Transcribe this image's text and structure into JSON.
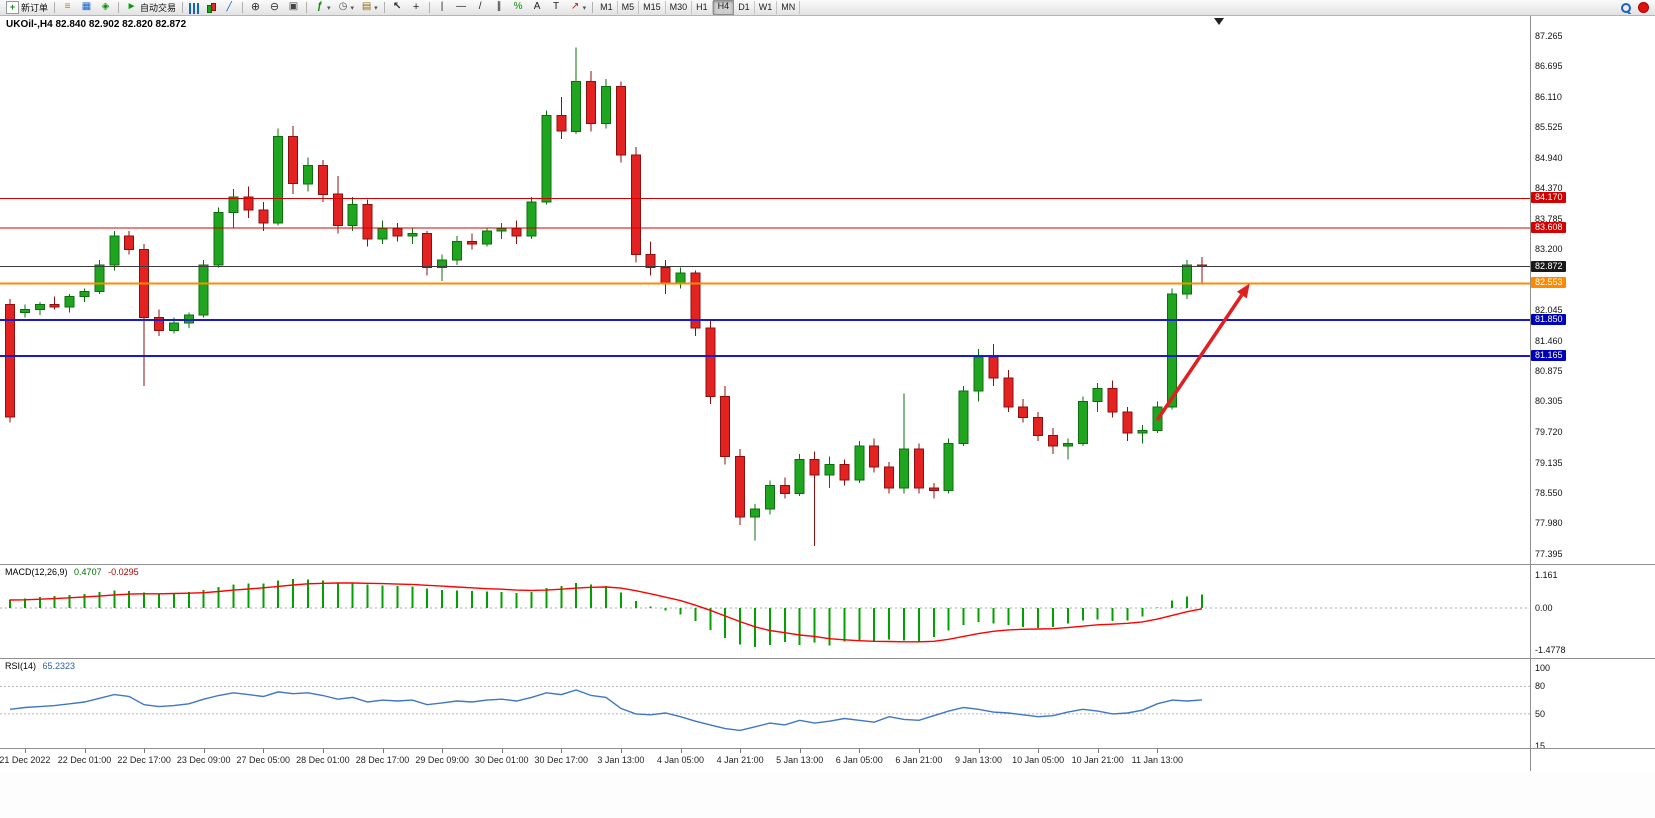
{
  "toolbar": {
    "groups": [
      {
        "name": "trade",
        "buttons": [
          {
            "name": "new-order-button",
            "icon": "new-order-icon",
            "label": "新订单"
          }
        ]
      },
      {
        "name": "windows",
        "buttons": [
          {
            "name": "market-watch-button",
            "icon": "market-watch-icon"
          },
          {
            "name": "data-window-button",
            "icon": "data-window-icon"
          },
          {
            "name": "navigator-button",
            "icon": "navigator-icon"
          }
        ]
      },
      {
        "name": "autotrade",
        "buttons": [
          {
            "name": "autotrade-button",
            "icon": "play-icon",
            "label": "自动交易"
          }
        ]
      },
      {
        "name": "chart-type",
        "buttons": [
          {
            "name": "bar-chart-button",
            "icon": "bar-chart-icon"
          },
          {
            "name": "candlestick-button",
            "icon": "candlestick-icon"
          },
          {
            "name": "line-chart-button",
            "icon": "line-chart-icon"
          }
        ]
      },
      {
        "name": "zoom",
        "buttons": [
          {
            "name": "zoom-in-button",
            "icon": "zoom-in-icon"
          },
          {
            "name": "zoom-out-button",
            "icon": "zoom-out-icon"
          },
          {
            "name": "tile-windows-button",
            "icon": "tile-windows-icon"
          }
        ]
      },
      {
        "name": "inserts",
        "buttons": [
          {
            "name": "indicators-button",
            "icon": "indicators-icon",
            "dropdown": true
          },
          {
            "name": "periods-button",
            "icon": "clock-icon",
            "dropdown": true
          },
          {
            "name": "templates-button",
            "icon": "template-icon",
            "dropdown": true
          }
        ]
      },
      {
        "name": "cursor",
        "buttons": [
          {
            "name": "cursor-button",
            "icon": "cursor-icon"
          },
          {
            "name": "crosshair-button",
            "icon": "crosshair-icon"
          }
        ]
      },
      {
        "name": "draw",
        "buttons": [
          {
            "name": "vertical-line-button",
            "icon": "vline-icon"
          },
          {
            "name": "horizontal-line-button",
            "icon": "hline-icon"
          },
          {
            "name": "trendline-button",
            "icon": "trendline-icon"
          },
          {
            "name": "channel-button",
            "icon": "channel-icon"
          },
          {
            "name": "fibonacci-button",
            "icon": "fibonacci-icon"
          },
          {
            "name": "text-button",
            "icon": "text-icon"
          },
          {
            "name": "label-button",
            "icon": "label-icon"
          },
          {
            "name": "arrows-button",
            "icon": "arrows-icon",
            "dropdown": true
          }
        ]
      },
      {
        "name": "timeframes",
        "buttons": [
          {
            "name": "tf-m1-button",
            "label": "M1"
          },
          {
            "name": "tf-m5-button",
            "label": "M5"
          },
          {
            "name": "tf-m15-button",
            "label": "M15"
          },
          {
            "name": "tf-m30-button",
            "label": "M30"
          },
          {
            "name": "tf-h1-button",
            "label": "H1"
          },
          {
            "name": "tf-h4-button",
            "label": "H4",
            "active": true
          },
          {
            "name": "tf-d1-button",
            "label": "D1"
          },
          {
            "name": "tf-w1-button",
            "label": "W1"
          },
          {
            "name": "tf-mn-button",
            "label": "MN"
          }
        ]
      }
    ],
    "right": [
      {
        "name": "search-button",
        "icon": "search-icon"
      },
      {
        "name": "notification-button",
        "icon": "red-dot-icon"
      }
    ]
  },
  "chart_data": {
    "type": "candlestick",
    "symbol": "UKOil-",
    "timeframe": "H4",
    "title": "UKOil-,H4 82.840 82.902 82.820 82.872",
    "last_ohlc": {
      "open": 82.84,
      "high": 82.902,
      "low": 82.82,
      "close": 82.872
    },
    "colors": {
      "up": "#1fa51f",
      "up_border": "#0b700b",
      "down": "#e32222",
      "down_border": "#8f0f0f",
      "current_price_line": "#3c3c3c",
      "red_line": "#d40000",
      "orange_line": "#ff8a00",
      "blue_line": "#1a1acc"
    },
    "price_axis": {
      "min": 77.395,
      "max": 87.265,
      "ticks": [
        "87.265",
        "86.695",
        "86.110",
        "85.525",
        "84.940",
        "84.370",
        "83.785",
        "83.200",
        "82.045",
        "81.460",
        "80.875",
        "80.305",
        "79.720",
        "79.135",
        "78.550",
        "77.980",
        "77.395"
      ]
    },
    "h_lines": [
      {
        "price": 84.17,
        "label": "84.170",
        "color": "#d40000",
        "tag_bg": "#d40000",
        "width": 1
      },
      {
        "price": 83.608,
        "label": "83.608",
        "color": "#d40000",
        "tag_bg": "#d40000",
        "width": 1
      },
      {
        "price": 82.872,
        "label": "82.872",
        "color": "#3c3c3c",
        "tag_bg": "#1a1a1a",
        "width": 1
      },
      {
        "price": 82.553,
        "label": "82.553",
        "color": "#ff8a00",
        "tag_bg": "#ff8a00",
        "width": 2
      },
      {
        "price": 81.85,
        "label": "81.850",
        "color": "#1a1acc",
        "tag_bg": "#0000b8",
        "width": 2
      },
      {
        "price": 81.165,
        "label": "81.165",
        "color": "#1a1acc",
        "tag_bg": "#0000b8",
        "width": 2
      }
    ],
    "trend_arrow": {
      "from": {
        "index": 77,
        "price": 79.95
      },
      "to": {
        "index": 83.2,
        "price": 82.55
      },
      "color": "#e02020"
    },
    "x_labels": [
      "21 Dec 2022",
      "22 Dec 01:00",
      "22 Dec 17:00",
      "23 Dec 09:00",
      "27 Dec 05:00",
      "28 Dec 01:00",
      "28 Dec 17:00",
      "29 Dec 09:00",
      "30 Dec 01:00",
      "30 Dec 17:00",
      "3 Jan 13:00",
      "4 Jan 05:00",
      "4 Jan 21:00",
      "5 Jan 13:00",
      "6 Jan 05:00",
      "6 Jan 21:00",
      "9 Jan 13:00",
      "10 Jan 05:00",
      "10 Jan 21:00",
      "11 Jan 13:00"
    ],
    "x_label_start_index": 1,
    "x_label_every": 4,
    "candle_fields": [
      "open",
      "high",
      "low",
      "close"
    ],
    "candles": [
      [
        82.15,
        82.25,
        79.9,
        80.0
      ],
      [
        82.0,
        82.15,
        81.9,
        82.05
      ],
      [
        82.05,
        82.2,
        81.95,
        82.15
      ],
      [
        82.15,
        82.3,
        82.05,
        82.1
      ],
      [
        82.1,
        82.35,
        82.0,
        82.3
      ],
      [
        82.3,
        82.45,
        82.2,
        82.4
      ],
      [
        82.4,
        83.0,
        82.35,
        82.9
      ],
      [
        82.9,
        83.55,
        82.8,
        83.45
      ],
      [
        83.45,
        83.55,
        83.1,
        83.2
      ],
      [
        83.2,
        83.3,
        80.6,
        81.9
      ],
      [
        81.9,
        82.05,
        81.55,
        81.65
      ],
      [
        81.65,
        81.9,
        81.6,
        81.8
      ],
      [
        81.8,
        82.0,
        81.7,
        81.95
      ],
      [
        81.95,
        83.0,
        81.9,
        82.9
      ],
      [
        82.9,
        84.0,
        82.85,
        83.9
      ],
      [
        83.9,
        84.35,
        83.6,
        84.2
      ],
      [
        84.2,
        84.4,
        83.8,
        83.95
      ],
      [
        83.95,
        84.1,
        83.55,
        83.7
      ],
      [
        83.7,
        85.5,
        83.65,
        85.35
      ],
      [
        85.35,
        85.55,
        84.25,
        84.45
      ],
      [
        84.45,
        84.95,
        84.3,
        84.8
      ],
      [
        84.8,
        84.9,
        84.1,
        84.25
      ],
      [
        84.25,
        84.6,
        83.5,
        83.65
      ],
      [
        83.65,
        84.2,
        83.55,
        84.05
      ],
      [
        84.05,
        84.15,
        83.25,
        83.4
      ],
      [
        83.4,
        83.75,
        83.3,
        83.6
      ],
      [
        83.6,
        83.7,
        83.35,
        83.45
      ],
      [
        83.45,
        83.6,
        83.3,
        83.5
      ],
      [
        83.5,
        83.55,
        82.7,
        82.85
      ],
      [
        82.85,
        83.1,
        82.6,
        83.0
      ],
      [
        83.0,
        83.45,
        82.9,
        83.35
      ],
      [
        83.35,
        83.5,
        83.2,
        83.3
      ],
      [
        83.3,
        83.6,
        83.25,
        83.55
      ],
      [
        83.55,
        83.7,
        83.4,
        83.6
      ],
      [
        83.6,
        83.75,
        83.3,
        83.45
      ],
      [
        83.45,
        84.2,
        83.4,
        84.1
      ],
      [
        84.1,
        85.85,
        84.05,
        85.75
      ],
      [
        85.75,
        86.1,
        85.3,
        85.45
      ],
      [
        85.45,
        87.05,
        85.4,
        86.4
      ],
      [
        86.4,
        86.6,
        85.45,
        85.6
      ],
      [
        85.6,
        86.45,
        85.5,
        86.3
      ],
      [
        86.3,
        86.4,
        84.85,
        85.0
      ],
      [
        85.0,
        85.15,
        82.95,
        83.1
      ],
      [
        83.1,
        83.35,
        82.7,
        82.85
      ],
      [
        82.85,
        83.0,
        82.35,
        82.55
      ],
      [
        82.55,
        82.85,
        82.45,
        82.75
      ],
      [
        82.75,
        82.8,
        81.55,
        81.7
      ],
      [
        81.7,
        81.85,
        80.25,
        80.4
      ],
      [
        80.4,
        80.6,
        79.1,
        79.25
      ],
      [
        79.25,
        79.4,
        77.95,
        78.1
      ],
      [
        78.1,
        78.35,
        77.65,
        78.25
      ],
      [
        78.25,
        78.8,
        78.15,
        78.7
      ],
      [
        78.7,
        78.85,
        78.45,
        78.55
      ],
      [
        78.55,
        79.3,
        78.5,
        79.2
      ],
      [
        79.2,
        79.35,
        77.55,
        78.9
      ],
      [
        78.9,
        79.25,
        78.65,
        79.1
      ],
      [
        79.1,
        79.2,
        78.7,
        78.8
      ],
      [
        78.8,
        79.55,
        78.75,
        79.45
      ],
      [
        79.45,
        79.6,
        78.95,
        79.05
      ],
      [
        79.05,
        79.15,
        78.55,
        78.65
      ],
      [
        78.65,
        80.45,
        78.55,
        79.4
      ],
      [
        79.4,
        79.5,
        78.55,
        78.65
      ],
      [
        78.65,
        78.75,
        78.45,
        78.6
      ],
      [
        78.6,
        79.6,
        78.55,
        79.5
      ],
      [
        79.5,
        80.6,
        79.45,
        80.5
      ],
      [
        80.5,
        81.3,
        80.3,
        81.15
      ],
      [
        81.15,
        81.4,
        80.6,
        80.75
      ],
      [
        80.75,
        80.9,
        80.1,
        80.2
      ],
      [
        80.2,
        80.35,
        79.9,
        80.0
      ],
      [
        80.0,
        80.1,
        79.55,
        79.65
      ],
      [
        79.65,
        79.8,
        79.3,
        79.45
      ],
      [
        79.45,
        79.6,
        79.2,
        79.5
      ],
      [
        79.5,
        80.4,
        79.45,
        80.3
      ],
      [
        80.3,
        80.65,
        80.1,
        80.55
      ],
      [
        80.55,
        80.7,
        80.0,
        80.1
      ],
      [
        80.1,
        80.2,
        79.55,
        79.7
      ],
      [
        79.7,
        79.85,
        79.5,
        79.75
      ],
      [
        79.75,
        80.3,
        79.7,
        80.2
      ],
      [
        80.2,
        82.45,
        80.15,
        82.35
      ],
      [
        82.35,
        83.0,
        82.25,
        82.9
      ],
      [
        82.9,
        83.05,
        82.55,
        82.87
      ]
    ],
    "indicators": [
      {
        "name": "MACD",
        "label": "MACD(12,26,9)",
        "value_main": "0.4707",
        "value_signal": "-0.0295",
        "axis_ticks": [
          "1.161",
          "0.00",
          "-1.4778"
        ],
        "colors": {
          "histogram": "#00a100",
          "signal": "#ff0000"
        },
        "histogram": [
          0.3,
          0.34,
          0.38,
          0.42,
          0.46,
          0.5,
          0.56,
          0.62,
          0.6,
          0.54,
          0.5,
          0.52,
          0.56,
          0.64,
          0.74,
          0.82,
          0.86,
          0.86,
          0.96,
          1.02,
          1.0,
          0.96,
          0.9,
          0.88,
          0.82,
          0.8,
          0.78,
          0.76,
          0.68,
          0.64,
          0.62,
          0.6,
          0.58,
          0.56,
          0.52,
          0.56,
          0.7,
          0.78,
          0.88,
          0.82,
          0.78,
          0.55,
          0.25,
          0.05,
          -0.08,
          -0.22,
          -0.45,
          -0.78,
          -1.05,
          -1.28,
          -1.38,
          -1.3,
          -1.2,
          -1.3,
          -1.22,
          -1.32,
          -1.18,
          -1.12,
          -1.2,
          -1.1,
          -1.15,
          -1.18,
          -1.02,
          -0.8,
          -0.6,
          -0.5,
          -0.55,
          -0.6,
          -0.66,
          -0.7,
          -0.66,
          -0.55,
          -0.44,
          -0.4,
          -0.46,
          -0.44,
          -0.3,
          0.02,
          0.26,
          0.4,
          0.4707
        ],
        "signal": [
          0.28,
          0.29,
          0.31,
          0.33,
          0.36,
          0.39,
          0.42,
          0.46,
          0.49,
          0.5,
          0.5,
          0.51,
          0.52,
          0.54,
          0.58,
          0.63,
          0.67,
          0.71,
          0.76,
          0.81,
          0.85,
          0.87,
          0.88,
          0.88,
          0.87,
          0.86,
          0.84,
          0.83,
          0.8,
          0.77,
          0.74,
          0.71,
          0.68,
          0.66,
          0.63,
          0.62,
          0.63,
          0.66,
          0.7,
          0.73,
          0.74,
          0.7,
          0.61,
          0.5,
          0.38,
          0.26,
          0.1,
          -0.08,
          -0.28,
          -0.48,
          -0.66,
          -0.79,
          -0.87,
          -0.95,
          -1.0,
          -1.08,
          -1.12,
          -1.15,
          -1.17,
          -1.18,
          -1.19,
          -1.19,
          -1.17,
          -1.1,
          -1.0,
          -0.9,
          -0.82,
          -0.77,
          -0.75,
          -0.74,
          -0.73,
          -0.69,
          -0.64,
          -0.59,
          -0.57,
          -0.54,
          -0.49,
          -0.39,
          -0.26,
          -0.13,
          -0.0295
        ]
      },
      {
        "name": "RSI",
        "label": "RSI(14)",
        "value": "65.2323",
        "axis_ticks": [
          "100",
          "80",
          "50",
          "15"
        ],
        "levels": [
          80,
          50
        ],
        "color": "#3f76c8",
        "values": [
          55,
          57,
          58,
          59,
          61,
          63,
          67,
          71,
          69,
          60,
          58,
          59,
          61,
          66,
          70,
          73,
          71,
          69,
          74,
          72,
          73,
          70,
          66,
          68,
          63,
          65,
          64,
          65,
          60,
          62,
          64,
          63,
          65,
          66,
          64,
          68,
          73,
          71,
          76,
          70,
          68,
          56,
          50,
          49,
          51,
          47,
          42,
          38,
          34,
          32,
          36,
          40,
          38,
          43,
          40,
          42,
          45,
          43,
          41,
          47,
          44,
          43,
          48,
          53,
          57,
          55,
          52,
          51,
          49,
          47,
          48,
          52,
          55,
          53,
          50,
          51,
          54,
          61,
          65,
          64,
          65.2323
        ]
      }
    ]
  }
}
